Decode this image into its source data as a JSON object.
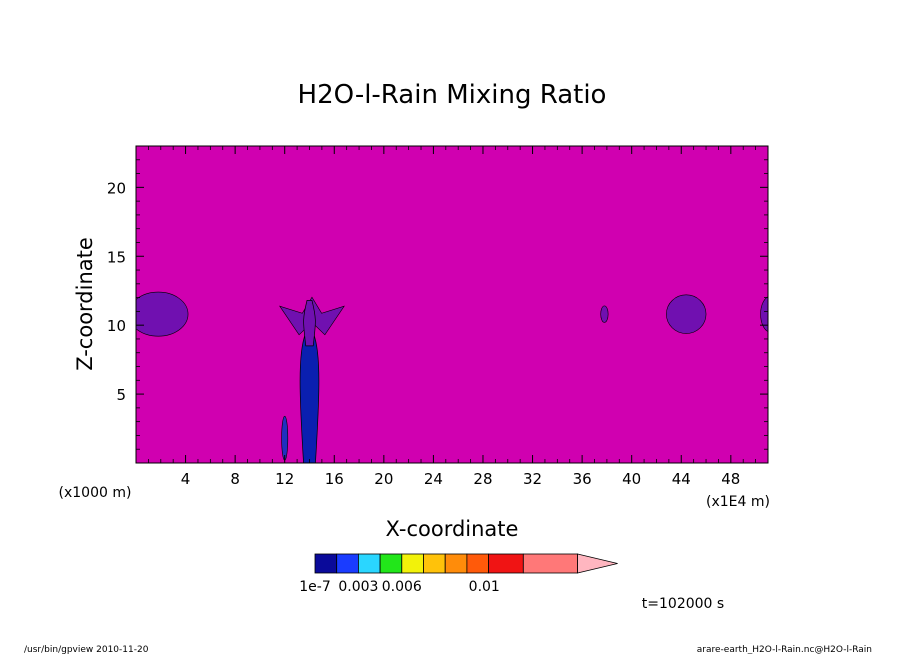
{
  "chart_data": {
    "type": "heatmap",
    "title": "H2O-l-Rain Mixing Ratio",
    "xlabel": "X-coordinate",
    "ylabel": "Z-coordinate",
    "x_unit_left": "(x1000 m)",
    "x_unit_right": "(x1E4 m)",
    "xlim": [
      0,
      51
    ],
    "ylim": [
      0,
      23
    ],
    "x_ticks": [
      4,
      8,
      12,
      16,
      20,
      24,
      28,
      32,
      36,
      40,
      44,
      48
    ],
    "y_ticks": [
      5,
      10,
      15,
      20
    ],
    "background_color": "#d000b0",
    "colorbar": {
      "colors": [
        "#0a0a9a",
        "#1a3cff",
        "#2ad6ff",
        "#22e61a",
        "#f2f20a",
        "#ffc20a",
        "#ff8c0a",
        "#ff5a0a",
        "#f01414",
        "#ff7878"
      ],
      "widths": [
        1,
        1,
        1,
        1,
        1,
        1,
        1,
        1,
        1.6,
        2.5
      ],
      "extend_color": "#ffb6c0",
      "tick_labels": [
        {
          "label": "1e-7",
          "level": 0
        },
        {
          "label": "0.003",
          "level": 2
        },
        {
          "label": "0.006",
          "level": 4
        },
        {
          "label": "0.01",
          "level": 7.8
        }
      ]
    },
    "features": [
      {
        "kind": "ellipse",
        "color": "#7010b0",
        "x": 1.8,
        "z": 10.8,
        "rx": 2.4,
        "rz": 1.6
      },
      {
        "kind": "ellipse",
        "color": "#7010b0",
        "x": 44.4,
        "z": 10.8,
        "rx": 1.6,
        "rz": 1.4
      },
      {
        "kind": "ellipse",
        "color": "#7010b0",
        "x": 51.2,
        "z": 10.8,
        "rx": 0.8,
        "rz": 1.3
      },
      {
        "kind": "ellipse",
        "color": "#7010b0",
        "x": 37.8,
        "z": 10.8,
        "rx": 0.3,
        "rz": 0.6
      },
      {
        "kind": "anvil",
        "color": "#7010b0",
        "x": 14.2,
        "z": 10.6,
        "rx": 2.6,
        "rz": 1.3
      },
      {
        "kind": "column",
        "color": "#0a1fb0",
        "x": 14.0,
        "z_bottom": 0,
        "z_top": 9.4,
        "half_width": 0.8
      },
      {
        "kind": "column",
        "color": "#7010b0",
        "x": 14.0,
        "z_bottom": 8.5,
        "z_top": 11.8,
        "half_width": 0.5
      },
      {
        "kind": "ellipse",
        "color": "#2030c0",
        "x": 12.0,
        "z": 1.8,
        "rx": 0.25,
        "rz": 1.6
      }
    ]
  },
  "annotations": {
    "time": "t=102000 s",
    "footer_left": "/usr/bin/gpview   2010-11-20",
    "footer_right": "arare-earth_H2O-l-Rain.nc@H2O-l-Rain"
  }
}
